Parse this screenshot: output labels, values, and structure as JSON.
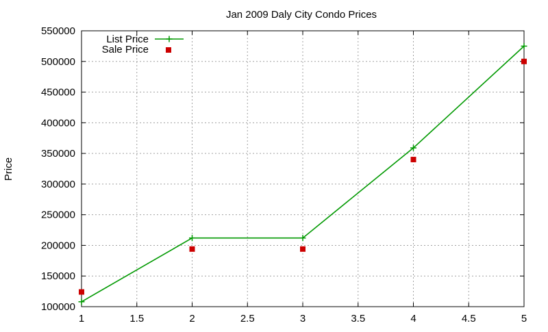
{
  "chart_data": {
    "type": "line",
    "title": "Jan 2009 Daly City Condo Prices",
    "xlabel": "",
    "ylabel": "Price",
    "xlim": [
      1,
      5
    ],
    "ylim": [
      100000,
      550000
    ],
    "xticks": [
      1,
      1.5,
      2,
      2.5,
      3,
      3.5,
      4,
      4.5,
      5
    ],
    "xtick_labels": [
      "1",
      "1.5",
      "2",
      "2.5",
      "3",
      "3.5",
      "4",
      "4.5",
      "5"
    ],
    "yticks": [
      100000,
      150000,
      200000,
      250000,
      300000,
      350000,
      400000,
      450000,
      500000,
      550000
    ],
    "ytick_labels": [
      "100000",
      "150000",
      "200000",
      "250000",
      "300000",
      "350000",
      "400000",
      "450000",
      "500000",
      "550000"
    ],
    "grid": true,
    "legend_position": "top-left",
    "series": [
      {
        "name": "List Price",
        "style": "linespoints",
        "marker": "plus",
        "color": "#009900",
        "x": [
          1,
          2,
          3,
          4,
          5
        ],
        "y": [
          108000,
          212000,
          212000,
          359000,
          525000
        ]
      },
      {
        "name": "Sale Price",
        "style": "points",
        "marker": "square",
        "color": "#cc0000",
        "x": [
          1,
          2,
          3,
          4,
          5
        ],
        "y": [
          124000,
          194000,
          194000,
          340000,
          500000
        ]
      }
    ]
  }
}
